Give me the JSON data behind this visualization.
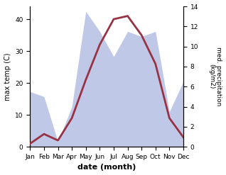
{
  "months": [
    "Jan",
    "Feb",
    "Mar",
    "Apr",
    "May",
    "Jun",
    "Jul",
    "Aug",
    "Sep",
    "Oct",
    "Nov",
    "Dec"
  ],
  "x": [
    0,
    1,
    2,
    3,
    4,
    5,
    6,
    7,
    8,
    9,
    10,
    11
  ],
  "temperature": [
    1,
    4,
    2,
    9,
    21,
    32,
    40,
    41,
    35,
    26,
    9,
    3
  ],
  "precipitation": [
    5.5,
    5.0,
    0.5,
    4.0,
    13.5,
    11.5,
    9.0,
    11.5,
    11.0,
    11.5,
    3.5,
    6.5
  ],
  "temp_color": "#993344",
  "precip_fill_color": "#c0c8e8",
  "xlabel": "date (month)",
  "ylabel_left": "max temp (C)",
  "ylabel_right": "med. precipitation\n(kg/m2)",
  "ylim_left": [
    0,
    44
  ],
  "ylim_right": [
    0,
    14
  ],
  "yticks_left": [
    0,
    10,
    20,
    30,
    40
  ],
  "yticks_right": [
    0,
    2,
    4,
    6,
    8,
    10,
    12,
    14
  ],
  "figsize": [
    3.18,
    2.47
  ],
  "dpi": 100
}
